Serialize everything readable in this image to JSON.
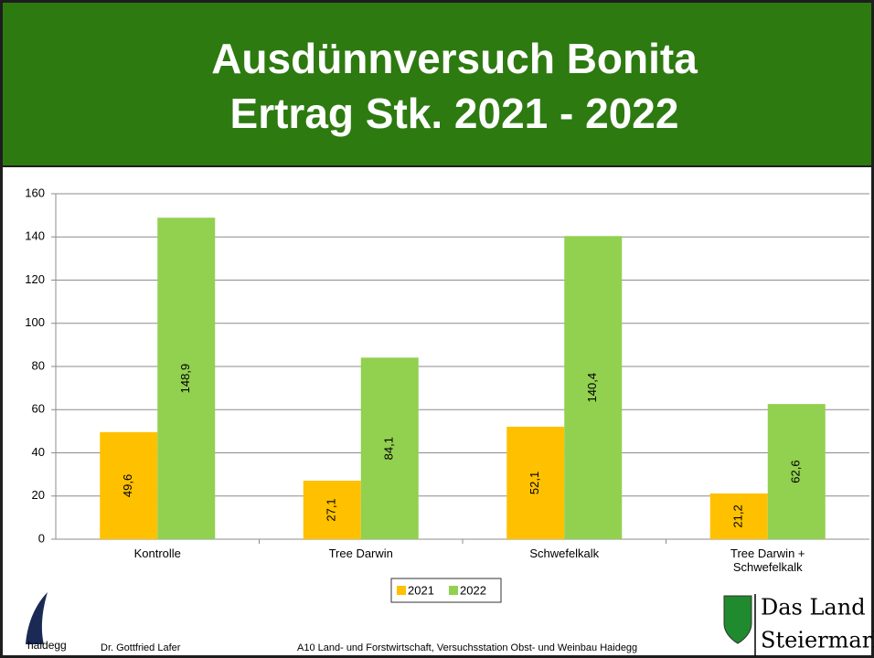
{
  "header": {
    "title_lines": [
      "Ausdünnversuch Bonita",
      "Ertrag Stk. 2021 - 2022"
    ]
  },
  "chart_data": {
    "type": "bar",
    "categories": [
      "Kontrolle",
      "Tree Darwin",
      "Schwefelkalk",
      "Tree Darwin + Schwefelkalk"
    ],
    "series": [
      {
        "name": "2021",
        "color": "#ffc000",
        "values": [
          49.6,
          27.1,
          52.1,
          21.2
        ],
        "value_labels": [
          "49,6",
          "27,1",
          "52,1",
          "21,2"
        ]
      },
      {
        "name": "2022",
        "color": "#92d050",
        "values": [
          148.9,
          84.1,
          140.4,
          62.6
        ],
        "value_labels": [
          "148,9",
          "84,1",
          "140,4",
          "62,6"
        ]
      }
    ],
    "ylim": [
      0,
      160
    ],
    "yticks": [
      0,
      20,
      40,
      60,
      80,
      100,
      120,
      140,
      160
    ],
    "grid": true,
    "legend": "bottom"
  },
  "footer": {
    "logo_text": "haidegg",
    "author": "Dr. Gottfried Lafer",
    "institution": "A10 Land- und Forstwirtschaft, Versuchsstation Obst- und Weinbau Haidegg",
    "brand_lines": [
      "Das Land",
      "Steiermark"
    ]
  }
}
